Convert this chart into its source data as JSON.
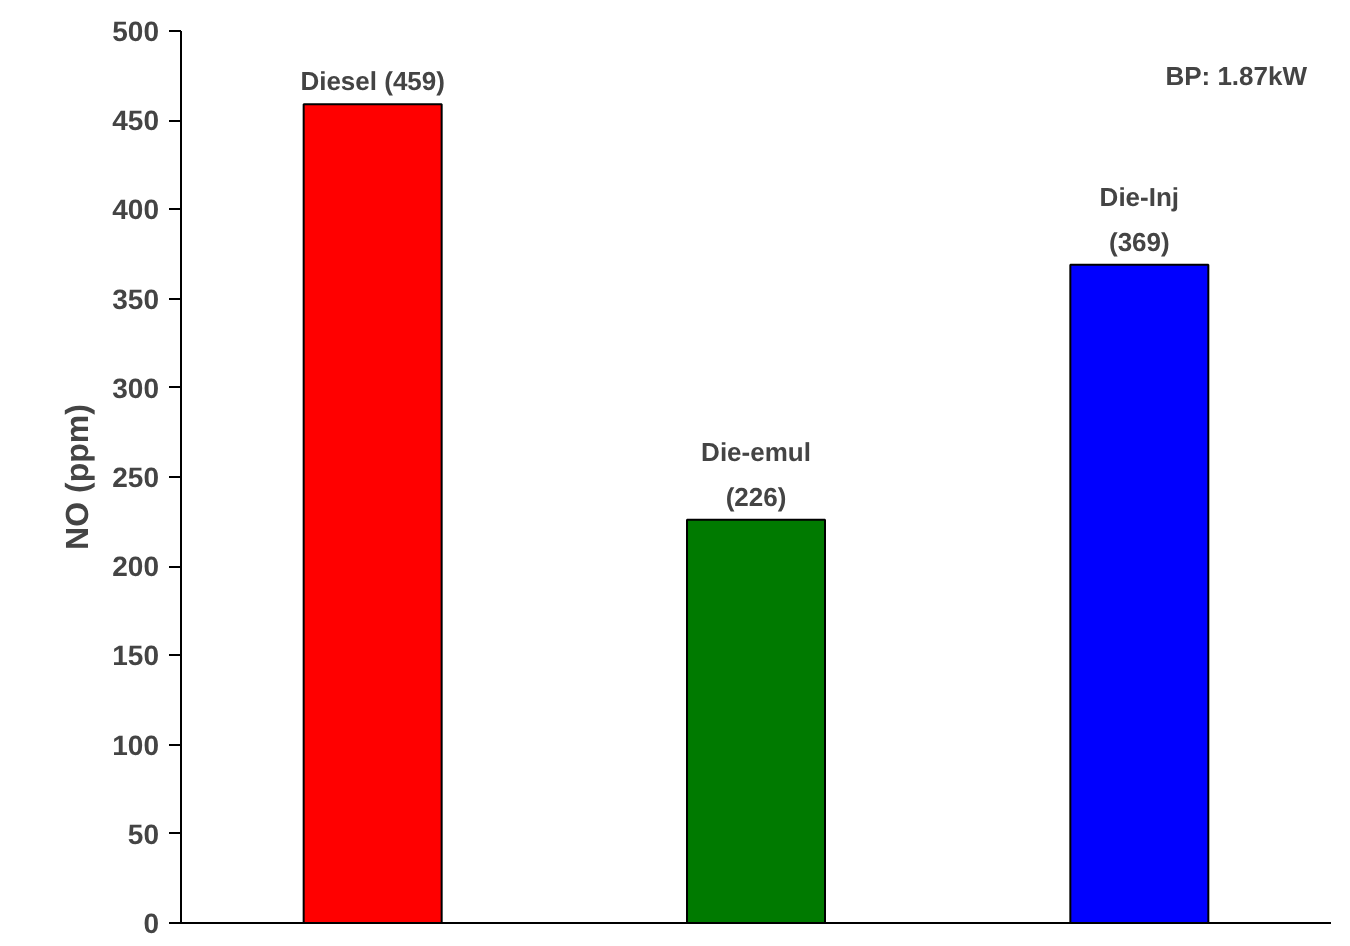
{
  "chart_data": {
    "type": "bar",
    "ylabel": "NO (ppm)",
    "categories": [
      null,
      null,
      null
    ],
    "values": [
      459,
      226,
      369
    ],
    "colors": [
      "#ff0000",
      "#007a00",
      "#0000ff"
    ],
    "value_labels": [
      "Diesel (459)",
      "Die-emul\n(226)",
      "Die-Inj\n(369)"
    ],
    "ylim": [
      0,
      500
    ],
    "yticks": [
      0,
      50,
      100,
      150,
      200,
      250,
      300,
      350,
      400,
      450,
      500
    ],
    "grid": false,
    "annotations": [
      "BP: 1.87kW"
    ]
  }
}
